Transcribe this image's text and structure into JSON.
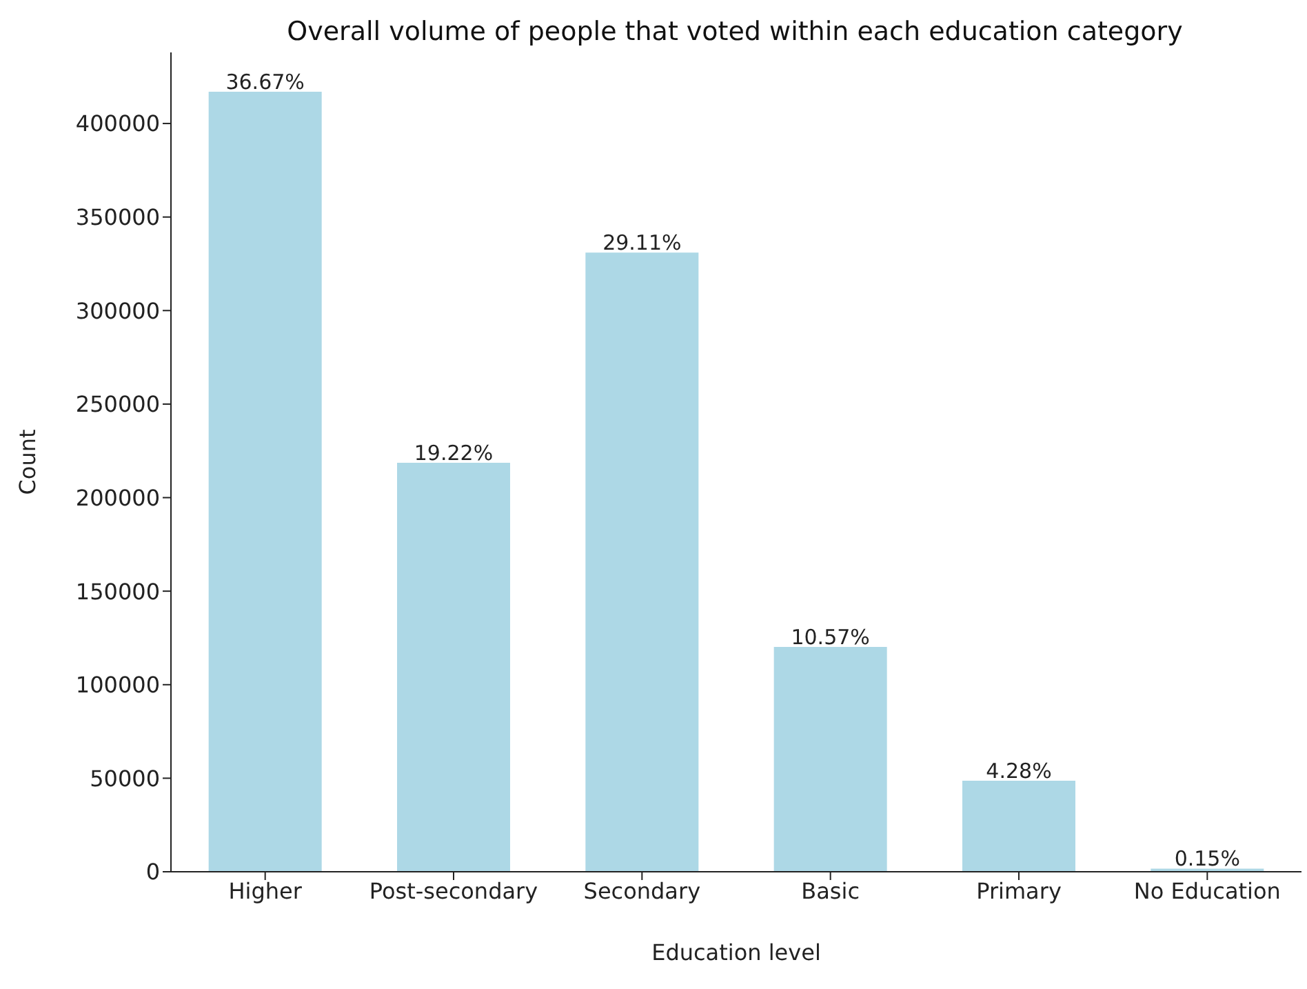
{
  "chart_data": {
    "type": "bar",
    "title": "Overall volume of people that voted within each education category",
    "xlabel": "Education level",
    "ylabel": "Count",
    "categories": [
      "Higher",
      "Post-secondary",
      "Secondary",
      "Basic",
      "Primary",
      "No Education"
    ],
    "values": [
      417000,
      218600,
      331000,
      120200,
      48700,
      1700
    ],
    "annotations": [
      {
        "text": "36.67%",
        "x": "Higher",
        "y": 417000
      },
      {
        "text": "19.22%",
        "x": "Post-secondary",
        "y": 218600
      },
      {
        "text": "29.11%",
        "x": "Secondary",
        "y": 331000
      },
      {
        "text": "10.57%",
        "x": "Basic",
        "y": 120200
      },
      {
        "text": "4.28%",
        "x": "Primary",
        "y": 48700
      },
      {
        "text": "0.15%",
        "x": "No Education",
        "y": 1700
      }
    ],
    "color": "#add8e6",
    "ylim": [
      0,
      438000
    ],
    "yticks": [
      0,
      50000,
      100000,
      150000,
      200000,
      250000,
      300000,
      350000,
      400000
    ],
    "grid": false,
    "legend": false
  }
}
